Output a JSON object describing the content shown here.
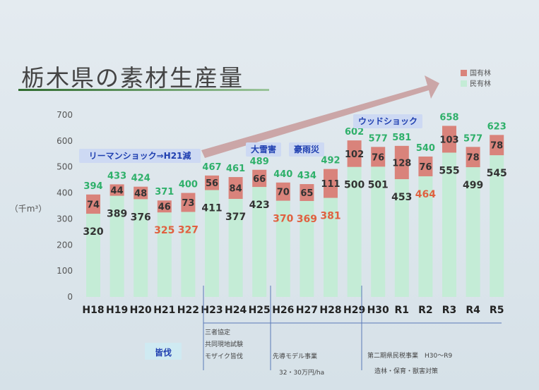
{
  "title": "栃木県の素材生産量",
  "chart_data": {
    "type": "bar",
    "stacked": true,
    "ylabel": "（千m³）",
    "ylim": [
      0,
      700
    ],
    "yticks": [
      0,
      100,
      200,
      300,
      400,
      500,
      600,
      700
    ],
    "grid": false,
    "legend_position": "top-right",
    "categories": [
      "H18",
      "H19",
      "H20",
      "H21",
      "H22",
      "H23",
      "H24",
      "H25",
      "H26",
      "H27",
      "H28",
      "H29",
      "H30",
      "R1",
      "R2",
      "R3",
      "R4",
      "R5"
    ],
    "series": [
      {
        "name": "民有林",
        "color": "#c4ecd6",
        "values": [
          320,
          389,
          376,
          325,
          327,
          411,
          377,
          423,
          370,
          369,
          381,
          500,
          501,
          453,
          464,
          555,
          499,
          545
        ],
        "label_colors": [
          "#333",
          "#333",
          "#333",
          "#e06040",
          "#e06040",
          "#333",
          "#333",
          "#333",
          "#e06040",
          "#e06040",
          "#e06040",
          "#333",
          "#333",
          "#333",
          "#e06040",
          "#333",
          "#333",
          "#333"
        ]
      },
      {
        "name": "国有林",
        "color": "#d9837b",
        "values": [
          74,
          44,
          48,
          46,
          73,
          56,
          84,
          66,
          70,
          65,
          111,
          102,
          76,
          128,
          76,
          103,
          78,
          78
        ]
      }
    ],
    "totals": [
      394,
      433,
      424,
      371,
      400,
      467,
      461,
      489,
      440,
      434,
      492,
      602,
      577,
      581,
      540,
      658,
      577,
      623
    ],
    "annotations": [
      {
        "text": "リーマンショック⇒H21減",
        "at": "H20"
      },
      {
        "text": "大雪害",
        "at": "H25"
      },
      {
        "text": "豪雨災",
        "at": "H27"
      },
      {
        "text": "ウッドショック",
        "at": "R2"
      }
    ],
    "periods": [
      {
        "label": "皆伐",
        "range": "H18-H22"
      },
      {
        "label": "三者協定\n共同現地試験\nモザイク皆伐",
        "range": "H23-H25"
      },
      {
        "label": "先導モデル事業",
        "sublabel": "32・30万円/ha",
        "range": "H26-H29"
      },
      {
        "label": "第二期県民税事業　H30～R9",
        "sublabel": "造林・保育・獣害対策",
        "range": "H30-R5"
      }
    ]
  }
}
